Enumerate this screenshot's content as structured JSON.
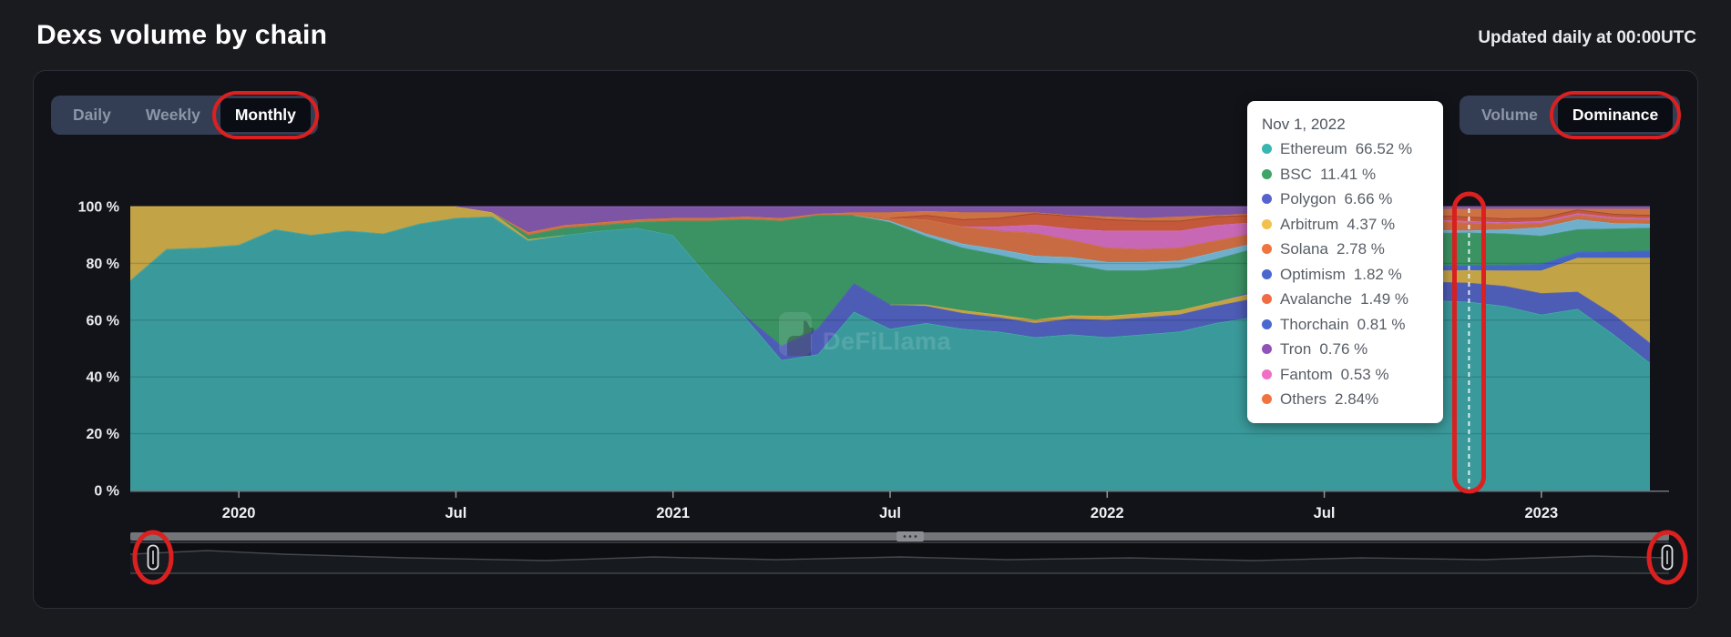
{
  "page": {
    "title": "Dexs volume by chain",
    "updated_note": "Updated daily at 00:00UTC"
  },
  "toolbar": {
    "period_tabs": [
      "Daily",
      "Weekly",
      "Monthly"
    ],
    "period_selected": "Monthly",
    "mode_tabs": [
      "Volume",
      "Dominance"
    ],
    "mode_selected": "Dominance"
  },
  "watermark": "DeFiLlama",
  "annotations": {
    "highlight_color": "#dc2020",
    "highlighted_elements": [
      "Monthly tab",
      "Dominance toggle",
      "Nov 2022 hover line",
      "range slider left handle",
      "range slider right handle"
    ]
  },
  "tooltip": {
    "title": "Nov 1, 2022",
    "items": [
      {
        "name": "Ethereum",
        "value": "66.52 %",
        "color": "#38b6b2"
      },
      {
        "name": "BSC",
        "value": "11.41 %",
        "color": "#3ea468"
      },
      {
        "name": "Polygon",
        "value": "6.66 %",
        "color": "#5663ce"
      },
      {
        "name": "Arbitrum",
        "value": "4.37 %",
        "color": "#f2c14d"
      },
      {
        "name": "Solana",
        "value": "2.78 %",
        "color": "#f0743e"
      },
      {
        "name": "Optimism",
        "value": "1.82 %",
        "color": "#4a67d0"
      },
      {
        "name": "Avalanche",
        "value": "1.49 %",
        "color": "#ef6c44"
      },
      {
        "name": "Thorchain",
        "value": "0.81 %",
        "color": "#4a67d0"
      },
      {
        "name": "Tron",
        "value": "0.76 %",
        "color": "#9053b8"
      },
      {
        "name": "Fantom",
        "value": "0.53 %",
        "color": "#ef6fc6"
      },
      {
        "name": "Others",
        "value": "2.84%",
        "color": "#f0743e"
      }
    ]
  },
  "chart_data": {
    "type": "area",
    "stacked": true,
    "unit": "%",
    "title": "Dexs volume dominance by chain (monthly)",
    "ylim": [
      0,
      100
    ],
    "grid": true,
    "y_ticks": [
      {
        "value": 0,
        "label": "0 %"
      },
      {
        "value": 20,
        "label": "20 %"
      },
      {
        "value": 40,
        "label": "40 %"
      },
      {
        "value": 60,
        "label": "60 %"
      },
      {
        "value": 80,
        "label": "80 %"
      },
      {
        "value": 100,
        "label": "100 %"
      }
    ],
    "x_tick_labels": [
      {
        "label": "2020",
        "index": 3
      },
      {
        "label": "Jul",
        "index": 9
      },
      {
        "label": "2021",
        "index": 15
      },
      {
        "label": "Jul",
        "index": 21
      },
      {
        "label": "2022",
        "index": 27
      },
      {
        "label": "Jul",
        "index": 33
      },
      {
        "label": "2023",
        "index": 39
      }
    ],
    "highlight_month": "2022-11",
    "highlight_index": 37,
    "x_months": [
      "2019-10",
      "2019-11",
      "2019-12",
      "2020-01",
      "2020-02",
      "2020-03",
      "2020-04",
      "2020-05",
      "2020-06",
      "2020-07",
      "2020-08",
      "2020-09",
      "2020-10",
      "2020-11",
      "2020-12",
      "2021-01",
      "2021-02",
      "2021-03",
      "2021-04",
      "2021-05",
      "2021-06",
      "2021-07",
      "2021-08",
      "2021-09",
      "2021-10",
      "2021-11",
      "2021-12",
      "2022-01",
      "2022-02",
      "2022-03",
      "2022-04",
      "2022-05",
      "2022-06",
      "2022-07",
      "2022-08",
      "2022-09",
      "2022-10",
      "2022-11",
      "2022-12",
      "2023-01",
      "2023-02",
      "2023-03",
      "2023-04"
    ],
    "series": [
      {
        "name": "Ethereum",
        "color": "#3a9a9b",
        "line": "#4cc4c0",
        "values": [
          74,
          85,
          85.5,
          86.5,
          92,
          90,
          91.5,
          90.5,
          94,
          96,
          96.5,
          88,
          90,
          91.5,
          92.5,
          90,
          75,
          61,
          46,
          48,
          63,
          57,
          59,
          57,
          56,
          54,
          55,
          54,
          55,
          56,
          59,
          61,
          63,
          62,
          63,
          65,
          67,
          66.52,
          65,
          62,
          64,
          55,
          45
        ]
      },
      {
        "name": "Polygon",
        "color": "#4d5cb5",
        "line": "#5f6cd8",
        "values": [
          0,
          0,
          0,
          0,
          0,
          0,
          0,
          0,
          0,
          0,
          0,
          0,
          0,
          0,
          0,
          0,
          0,
          0.5,
          5,
          9,
          10,
          8.5,
          6,
          5.5,
          5,
          5,
          5.5,
          6,
          6,
          6,
          6,
          6.5,
          7,
          7,
          7,
          7,
          6.5,
          6.66,
          7,
          7.5,
          6,
          7,
          7
        ]
      },
      {
        "name": "Arbitrum",
        "color": "#c2a345",
        "line": "#e3bd4e",
        "values": [
          26,
          15,
          14.5,
          13.5,
          8,
          10,
          8.5,
          9.5,
          6,
          4,
          1.5,
          0.5,
          0,
          0,
          0,
          0,
          0,
          0,
          0,
          0,
          0,
          0,
          0.5,
          1,
          1,
          1.2,
          1.2,
          1.5,
          1.5,
          1.5,
          1.5,
          2,
          2.5,
          3,
          3,
          3.5,
          4,
          4.37,
          5.5,
          8,
          12,
          20,
          30
        ]
      },
      {
        "name": "Optimism",
        "color": "#4464c4",
        "line": "#5578e8",
        "values": [
          0,
          0,
          0,
          0,
          0,
          0,
          0,
          0,
          0,
          0,
          0,
          0,
          0,
          0,
          0,
          0,
          0,
          0,
          0,
          0,
          0,
          0,
          0,
          0,
          0,
          0,
          0,
          0,
          0,
          0,
          0,
          0.5,
          0.8,
          1,
          1.2,
          1.5,
          1.7,
          1.82,
          2,
          2.2,
          2,
          2.2,
          2.5
        ]
      },
      {
        "name": "BSC",
        "color": "#3b9364",
        "line": "#43aa72",
        "values": [
          0,
          0,
          0,
          0,
          0,
          0,
          0,
          0,
          0,
          0,
          0,
          1.5,
          2.5,
          2,
          2,
          5,
          20,
          34,
          44,
          40,
          24,
          29,
          24,
          22,
          21,
          20,
          18,
          16,
          15,
          15,
          15,
          15,
          13.5,
          14,
          12.5,
          12,
          11.5,
          11.41,
          11,
          10,
          8,
          8,
          8
        ]
      },
      {
        "name": "Thorchain",
        "color": "#6fafcb",
        "line": "#8ecbe4",
        "values": [
          0,
          0,
          0,
          0,
          0,
          0,
          0,
          0,
          0,
          0,
          0,
          0,
          0,
          0,
          0,
          0,
          0,
          0,
          0,
          0,
          0,
          0.5,
          1,
          1.5,
          2,
          2.5,
          2.5,
          3,
          3,
          2.5,
          2.5,
          2,
          1.5,
          1.5,
          2,
          1.5,
          1,
          0.81,
          1.5,
          3,
          3.5,
          2,
          1.5
        ]
      },
      {
        "name": "Solana",
        "color": "#c96b42",
        "line": "#e57c48",
        "values": [
          0,
          0,
          0,
          0,
          0,
          0,
          0,
          0,
          0,
          0,
          0,
          0,
          0,
          0,
          0,
          0,
          0,
          0,
          0,
          0,
          0,
          1,
          5,
          6,
          6.5,
          8,
          6,
          5,
          4.5,
          4.5,
          4,
          3.5,
          3,
          3,
          3,
          3,
          3,
          2.78,
          2,
          1.5,
          1.5,
          1.5,
          1.5
        ]
      },
      {
        "name": "Fantom",
        "color": "#c868b4",
        "line": "#e678cd",
        "values": [
          0,
          0,
          0,
          0,
          0,
          0,
          0,
          0,
          0,
          0,
          0,
          0,
          0,
          0,
          0,
          0,
          0,
          0,
          0,
          0,
          0,
          0,
          0,
          0,
          1.5,
          3,
          4,
          6,
          6.5,
          6,
          5.5,
          4,
          2.5,
          2,
          1.5,
          1,
          0.7,
          0.53,
          0.5,
          0.7,
          0.7,
          0.6,
          0.5
        ]
      },
      {
        "name": "Avalanche",
        "color": "#c4583a",
        "line": "#7e2f1d",
        "values": [
          0,
          0,
          0,
          0,
          0,
          0,
          0,
          0,
          0,
          0,
          0,
          0,
          0,
          0,
          0,
          0,
          0,
          0,
          0,
          0,
          0,
          0,
          1.5,
          2.5,
          3,
          4,
          4.5,
          4,
          3.5,
          3.5,
          3,
          2.5,
          2,
          2,
          1.8,
          1.7,
          1.6,
          1.49,
          1.3,
          1.2,
          1.2,
          1.1,
          1
        ]
      },
      {
        "name": "Others",
        "color": "#cc7243",
        "line": "#e8824d",
        "values": [
          0,
          0,
          0,
          0,
          0,
          0,
          0,
          0,
          0,
          0,
          0,
          1,
          1,
          1,
          1,
          1,
          1,
          1,
          1,
          0.5,
          1,
          2,
          1.5,
          2.5,
          2,
          0.3,
          0.3,
          1,
          1,
          1.5,
          0.5,
          0.5,
          2.2,
          3,
          3.8,
          2.8,
          2.2,
          2.84,
          3.4,
          3.1,
          0.3,
          1.8,
          2.2
        ]
      },
      {
        "name": "Tron",
        "color": "#7e55a4",
        "line": "#9a68c8",
        "values": [
          0,
          0,
          0,
          0,
          0,
          0,
          0,
          0,
          0,
          0,
          2,
          9,
          6.5,
          5.5,
          4.5,
          4,
          4,
          3.5,
          4,
          2.5,
          2,
          2,
          1.5,
          2,
          2,
          2,
          3,
          3.5,
          4,
          3.5,
          3,
          2.5,
          2,
          1.5,
          1.2,
          1,
          0.8,
          0.76,
          0.8,
          0.8,
          0.8,
          0.8,
          0.8
        ]
      }
    ],
    "legend_position": "tooltip-only"
  }
}
